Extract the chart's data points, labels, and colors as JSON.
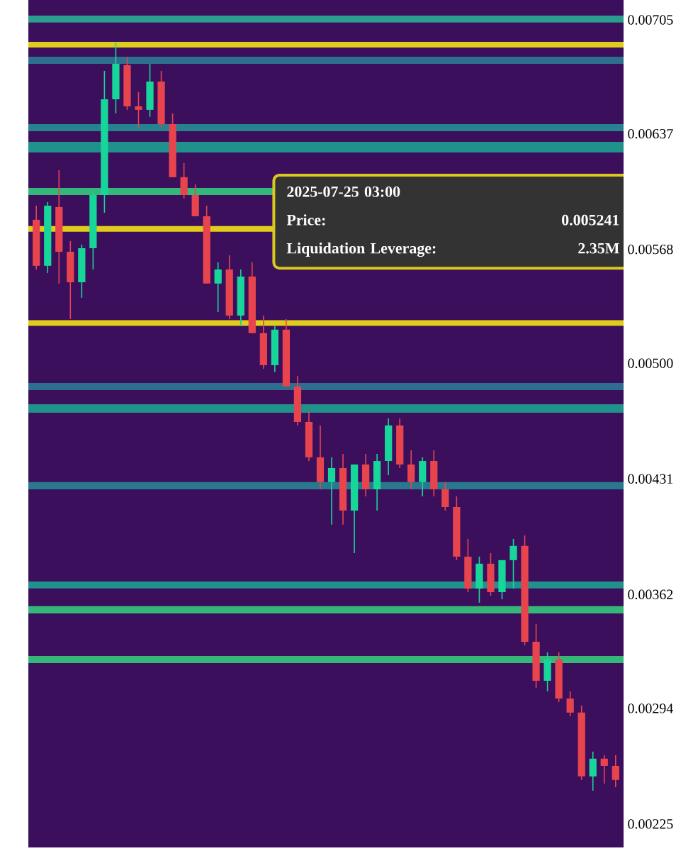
{
  "chart_data": {
    "type": "candlestick",
    "categories": [
      null,
      null,
      null,
      null,
      null,
      null,
      null,
      null,
      null,
      null,
      null,
      null,
      null,
      null,
      null,
      null,
      null,
      null,
      null,
      null,
      null,
      null,
      null,
      null,
      null,
      null,
      null,
      null,
      null,
      null,
      null,
      null,
      null,
      null,
      null,
      null,
      null,
      null,
      null,
      null,
      null,
      null,
      null,
      null,
      null,
      null,
      null,
      null,
      null,
      null,
      null,
      null
    ],
    "ohlc": [
      [
        0.005857,
        0.005941,
        0.00556,
        0.005582
      ],
      [
        0.005582,
        0.005963,
        0.005539,
        0.005941
      ],
      [
        0.005933,
        0.006153,
        0.005476,
        0.005666
      ],
      [
        0.005666,
        0.00573,
        0.005264,
        0.005484
      ],
      [
        0.005484,
        0.005709,
        0.005391,
        0.005687
      ],
      [
        0.005687,
        0.006026,
        0.00556,
        0.006005
      ],
      [
        0.006005,
        0.006746,
        0.005899,
        0.006576
      ],
      [
        0.006576,
        0.006915,
        0.006492,
        0.006788
      ],
      [
        0.00678,
        0.00683,
        0.006513,
        0.006534
      ],
      [
        0.006534,
        0.006619,
        0.006407,
        0.006513
      ],
      [
        0.006513,
        0.006788,
        0.006471,
        0.006682
      ],
      [
        0.006682,
        0.006746,
        0.006407,
        0.006428
      ],
      [
        0.006428,
        0.006492,
        0.006111,
        0.006111
      ],
      [
        0.006111,
        0.006195,
        0.005984,
        0.006005
      ],
      [
        0.006005,
        0.006068,
        0.005878,
        0.005878
      ],
      [
        0.005878,
        0.005941,
        0.005476,
        0.005476
      ],
      [
        0.005476,
        0.005603,
        0.005306,
        0.00556
      ],
      [
        0.00556,
        0.005645,
        0.005264,
        0.005285
      ],
      [
        0.005285,
        0.00556,
        0.005222,
        0.005518
      ],
      [
        0.005518,
        0.005603,
        0.00518,
        0.00518
      ],
      [
        0.00518,
        0.005285,
        0.004968,
        0.004989
      ],
      [
        0.004989,
        0.005222,
        0.004947,
        0.005201
      ],
      [
        0.005201,
        0.005264,
        0.004862,
        0.004862
      ],
      [
        0.004862,
        0.004925,
        0.004629,
        0.00465
      ],
      [
        0.00465,
        0.004714,
        0.004417,
        0.004439
      ],
      [
        0.004439,
        0.004629,
        0.004248,
        0.004291
      ],
      [
        0.004291,
        0.004439,
        0.004037,
        0.004375
      ],
      [
        0.004375,
        0.00446,
        0.004037,
        0.004121
      ],
      [
        0.004121,
        0.004396,
        0.003867,
        0.004396
      ],
      [
        0.004396,
        0.00446,
        0.004206,
        0.004248
      ],
      [
        0.004248,
        0.00446,
        0.004121,
        0.004417
      ],
      [
        0.004417,
        0.004671,
        0.004333,
        0.004629
      ],
      [
        0.004629,
        0.004671,
        0.004375,
        0.004396
      ],
      [
        0.004396,
        0.004481,
        0.004248,
        0.004291
      ],
      [
        0.004291,
        0.004439,
        0.004206,
        0.004417
      ],
      [
        0.004417,
        0.004481,
        0.004206,
        0.004248
      ],
      [
        0.004248,
        0.004291,
        0.004121,
        0.004142
      ],
      [
        0.004142,
        0.004206,
        0.003825,
        0.003846
      ],
      [
        0.003846,
        0.003952,
        0.003634,
        0.003656
      ],
      [
        0.003656,
        0.003846,
        0.003571,
        0.003804
      ],
      [
        0.003804,
        0.003867,
        0.003613,
        0.003634
      ],
      [
        0.003634,
        0.003825,
        0.003592,
        0.003825
      ],
      [
        0.003825,
        0.003952,
        0.003656,
        0.00391
      ],
      [
        0.00391,
        0.003973,
        0.003317,
        0.003338
      ],
      [
        0.003338,
        0.003444,
        0.003063,
        0.003105
      ],
      [
        0.003105,
        0.003275,
        0.003042,
        0.003232
      ],
      [
        0.003232,
        0.003275,
        0.002978,
        0.002999
      ],
      [
        0.002999,
        0.003042,
        0.002894,
        0.002915
      ],
      [
        0.002915,
        0.002957,
        0.002513,
        0.002534
      ],
      [
        0.002534,
        0.002682,
        0.002449,
        0.00264
      ],
      [
        0.00264,
        0.002661,
        0.002491,
        0.002597
      ],
      [
        0.002597,
        0.002661,
        0.00247,
        0.002513
      ]
    ],
    "ylim": [
      0.00211,
      0.007169
    ],
    "yticks": [
      0.00705,
      0.00637,
      0.00568,
      {
        "value": 0.005,
        "label": "0.00500"
      },
      0.00431,
      0.00362,
      0.00294,
      0.00225
    ],
    "tick_labels": "y",
    "bands": [
      {
        "axis": "y",
        "from": 0.007034,
        "to": 0.007076,
        "color": "#2a9d8e"
      },
      {
        "axis": "y",
        "from": 0.006788,
        "to": 0.00683,
        "color": "#2e6f8e"
      },
      {
        "axis": "y",
        "from": 0.006386,
        "to": 0.006428,
        "color": "#26828e"
      },
      {
        "axis": "y",
        "from": 0.006259,
        "to": 0.006322,
        "color": "#21918c"
      },
      {
        "axis": "y",
        "from": 0.006005,
        "to": 0.006047,
        "color": "#35b779"
      },
      {
        "axis": "y",
        "from": 0.004841,
        "to": 0.004883,
        "color": "#2e6e8e"
      },
      {
        "axis": "y",
        "from": 0.004705,
        "to": 0.004756,
        "color": "#21918c"
      },
      {
        "axis": "y",
        "from": 0.004248,
        "to": 0.004291,
        "color": "#2a788e"
      },
      {
        "axis": "y",
        "from": 0.003656,
        "to": 0.003698,
        "color": "#21918c"
      },
      {
        "axis": "y",
        "from": 0.003507,
        "to": 0.00355,
        "color": "#35b779"
      },
      {
        "axis": "y",
        "from": 0.003211,
        "to": 0.003253,
        "color": "#35b779"
      }
    ],
    "ref_lines": [
      {
        "axis": "y",
        "value": 0.006902,
        "color": "#e0cc1a"
      },
      {
        "axis": "y",
        "value": 0.005802,
        "color": "#e0cc1a"
      },
      {
        "axis": "y",
        "value": 0.005241,
        "color": "#e0cc1a"
      }
    ],
    "annotations": [
      "2025-07-25 03:00",
      "Price:",
      "0.005241",
      "Liquidation Leverage:",
      "2.35M"
    ]
  }
}
